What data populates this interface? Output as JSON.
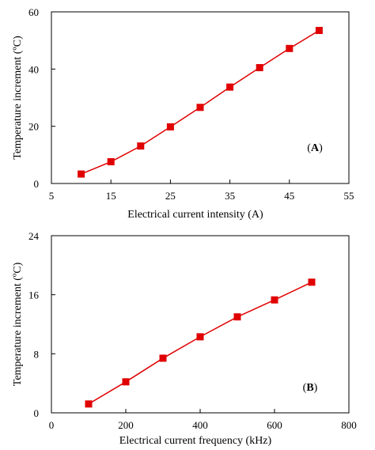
{
  "chart_data": [
    {
      "type": "line",
      "panel_label": "A",
      "xlabel": "Electrical current intensity (A)",
      "ylabel": "Temperature increment (ºC)",
      "xlim": [
        5,
        55
      ],
      "ylim": [
        0,
        60
      ],
      "x_ticks": [
        5,
        15,
        25,
        35,
        45,
        55
      ],
      "y_ticks": [
        0,
        20,
        40,
        60
      ],
      "marker": "square",
      "color": "#e00000",
      "grid": false,
      "series": [
        {
          "x": [
            10,
            15,
            20,
            25,
            30,
            35,
            40,
            45,
            50
          ],
          "values": [
            3.3,
            7.6,
            13.1,
            19.8,
            26.6,
            33.7,
            40.5,
            47.2,
            53.5
          ]
        }
      ]
    },
    {
      "type": "line",
      "panel_label": "B",
      "xlabel": "Electrical current frequency (kHz)",
      "ylabel": "Temperature increment (ºC)",
      "xlim": [
        0,
        800
      ],
      "ylim": [
        0,
        24
      ],
      "x_ticks": [
        0,
        200,
        400,
        600,
        800
      ],
      "y_ticks": [
        0,
        8,
        16,
        24
      ],
      "marker": "square",
      "color": "#e00000",
      "grid": false,
      "series": [
        {
          "x": [
            100,
            200,
            300,
            400,
            500,
            600,
            700
          ],
          "values": [
            1.2,
            4.2,
            7.4,
            10.3,
            13.0,
            15.3,
            17.7
          ]
        }
      ]
    }
  ]
}
